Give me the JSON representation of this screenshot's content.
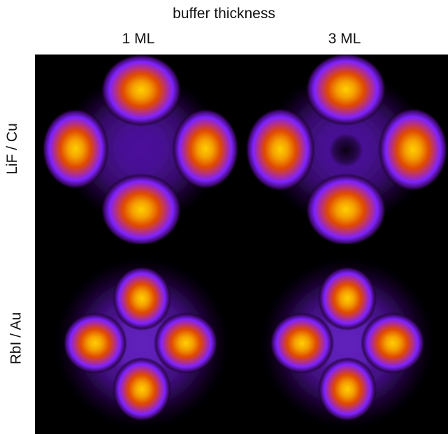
{
  "figure": {
    "column_header": "buffer thickness",
    "columns": [
      "1 ML",
      "3 ML"
    ],
    "rows": [
      "LiF / Cu",
      "RbI / Au"
    ]
  },
  "colors": {
    "background": "#000000",
    "colormap": [
      "#000000",
      "#3a005a",
      "#7f22ff",
      "#c03aa0",
      "#d94000",
      "#f08000",
      "#ffd000"
    ]
  },
  "panels": [
    {
      "row": "LiF / Cu",
      "column": "1 ML",
      "pattern": "four-lobe, lobes separated"
    },
    {
      "row": "LiF / Cu",
      "column": "3 ML",
      "pattern": "four-lobe, lobes separated, dark center"
    },
    {
      "row": "RbI / Au",
      "column": "1 ML",
      "pattern": "four-lobe, compact clover"
    },
    {
      "row": "RbI / Au",
      "column": "3 ML",
      "pattern": "four-lobe, compact clover"
    }
  ]
}
